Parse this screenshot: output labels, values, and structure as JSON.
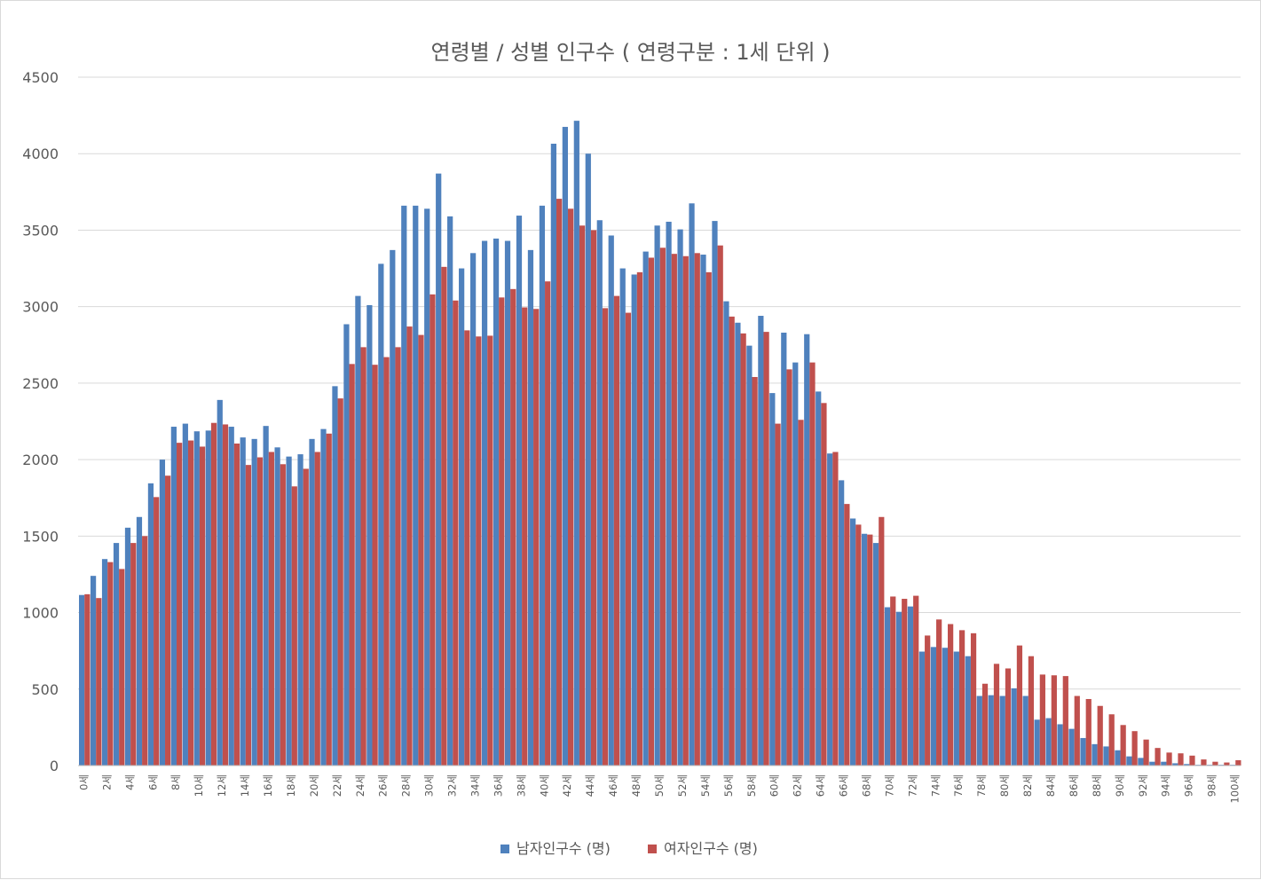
{
  "chart_data": {
    "type": "bar",
    "title": "연령별  / 성별 인구수 ( 연령구분 : 1세 단위 )",
    "xlabel": "",
    "ylabel": "",
    "ylim": [
      0,
      4500
    ],
    "yticks": [
      0,
      500,
      1000,
      1500,
      2000,
      2500,
      3000,
      3500,
      4000,
      4500
    ],
    "grid": true,
    "legend_position": "bottom",
    "categories": [
      "0세",
      "1세",
      "2세",
      "3세",
      "4세",
      "5세",
      "6세",
      "7세",
      "8세",
      "9세",
      "10세",
      "11세",
      "12세",
      "13세",
      "14세",
      "15세",
      "16세",
      "17세",
      "18세",
      "19세",
      "20세",
      "21세",
      "22세",
      "23세",
      "24세",
      "25세",
      "26세",
      "27세",
      "28세",
      "29세",
      "30세",
      "31세",
      "32세",
      "33세",
      "34세",
      "35세",
      "36세",
      "37세",
      "38세",
      "39세",
      "40세",
      "41세",
      "42세",
      "43세",
      "44세",
      "45세",
      "46세",
      "47세",
      "48세",
      "49세",
      "50세",
      "51세",
      "52세",
      "53세",
      "54세",
      "55세",
      "56세",
      "57세",
      "58세",
      "59세",
      "60세",
      "61세",
      "62세",
      "63세",
      "64세",
      "65세",
      "66세",
      "67세",
      "68세",
      "69세",
      "70세",
      "71세",
      "72세",
      "73세",
      "74세",
      "75세",
      "76세",
      "77세",
      "78세",
      "79세",
      "80세",
      "81세",
      "82세",
      "83세",
      "84세",
      "85세",
      "86세",
      "87세",
      "88세",
      "89세",
      "90세",
      "91세",
      "92세",
      "93세",
      "94세",
      "95세",
      "96세",
      "97세",
      "98세",
      "99세",
      "100세"
    ],
    "series": [
      {
        "name": "남자인구수 (명)",
        "color": "#4f81bd",
        "values": [
          1115,
          1240,
          1350,
          1455,
          1555,
          1625,
          1845,
          2000,
          2215,
          2235,
          2185,
          2190,
          2390,
          2215,
          2145,
          2135,
          2220,
          2080,
          2020,
          2035,
          2135,
          2200,
          2480,
          2885,
          3070,
          3010,
          3280,
          3370,
          3660,
          3660,
          3640,
          3870,
          3590,
          3250,
          3350,
          3430,
          3445,
          3430,
          3595,
          3370,
          3660,
          4065,
          4175,
          4215,
          4000,
          3565,
          3465,
          3250,
          3210,
          3360,
          3530,
          3555,
          3505,
          3675,
          3340,
          3560,
          3035,
          2895,
          2745,
          2940,
          2435,
          2830,
          2635,
          2820,
          2445,
          2040,
          1865,
          1615,
          1515,
          1455,
          1035,
          1005,
          1040,
          745,
          775,
          770,
          745,
          715,
          455,
          460,
          455,
          505,
          455,
          300,
          310,
          270,
          240,
          180,
          140,
          125,
          100,
          60,
          50,
          25,
          25,
          15,
          10,
          5,
          5,
          5,
          5
        ]
      },
      {
        "name": "여자인구수 (명)",
        "color": "#c0504d",
        "values": [
          1120,
          1095,
          1330,
          1285,
          1455,
          1500,
          1755,
          1895,
          2110,
          2125,
          2085,
          2240,
          2230,
          2105,
          1965,
          2015,
          2050,
          1970,
          1825,
          1940,
          2050,
          2170,
          2400,
          2625,
          2735,
          2620,
          2670,
          2735,
          2870,
          2815,
          3080,
          3260,
          3040,
          2845,
          2805,
          2810,
          3060,
          3115,
          2995,
          2985,
          3165,
          3705,
          3640,
          3530,
          3500,
          2990,
          3070,
          2960,
          3225,
          3320,
          3385,
          3345,
          3330,
          3350,
          3225,
          3400,
          2935,
          2825,
          2540,
          2835,
          2235,
          2590,
          2260,
          2635,
          2370,
          2050,
          1710,
          1575,
          1510,
          1625,
          1105,
          1090,
          1110,
          850,
          955,
          925,
          885,
          865,
          535,
          665,
          635,
          785,
          715,
          595,
          590,
          585,
          455,
          435,
          390,
          335,
          265,
          225,
          170,
          115,
          85,
          80,
          65,
          40,
          25,
          20,
          35
        ]
      }
    ]
  }
}
